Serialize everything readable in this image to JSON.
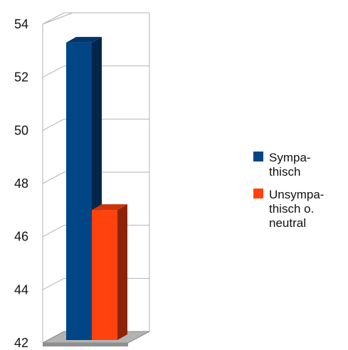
{
  "chart_data": {
    "type": "bar",
    "categories": [
      ""
    ],
    "series": [
      {
        "name": "Sympa-\nthisch",
        "values": [
          53.2
        ],
        "color": "#004586"
      },
      {
        "name": "Unsympa-\nthisch o.\nneutral",
        "values": [
          46.9
        ],
        "color": "#ff420e"
      }
    ],
    "ylim": [
      42,
      54
    ],
    "yticks": [
      42,
      44,
      46,
      48,
      50,
      52,
      54
    ],
    "title": "",
    "xlabel": "",
    "ylabel": "",
    "grid": true,
    "legend_position": "right",
    "style": "3d"
  }
}
